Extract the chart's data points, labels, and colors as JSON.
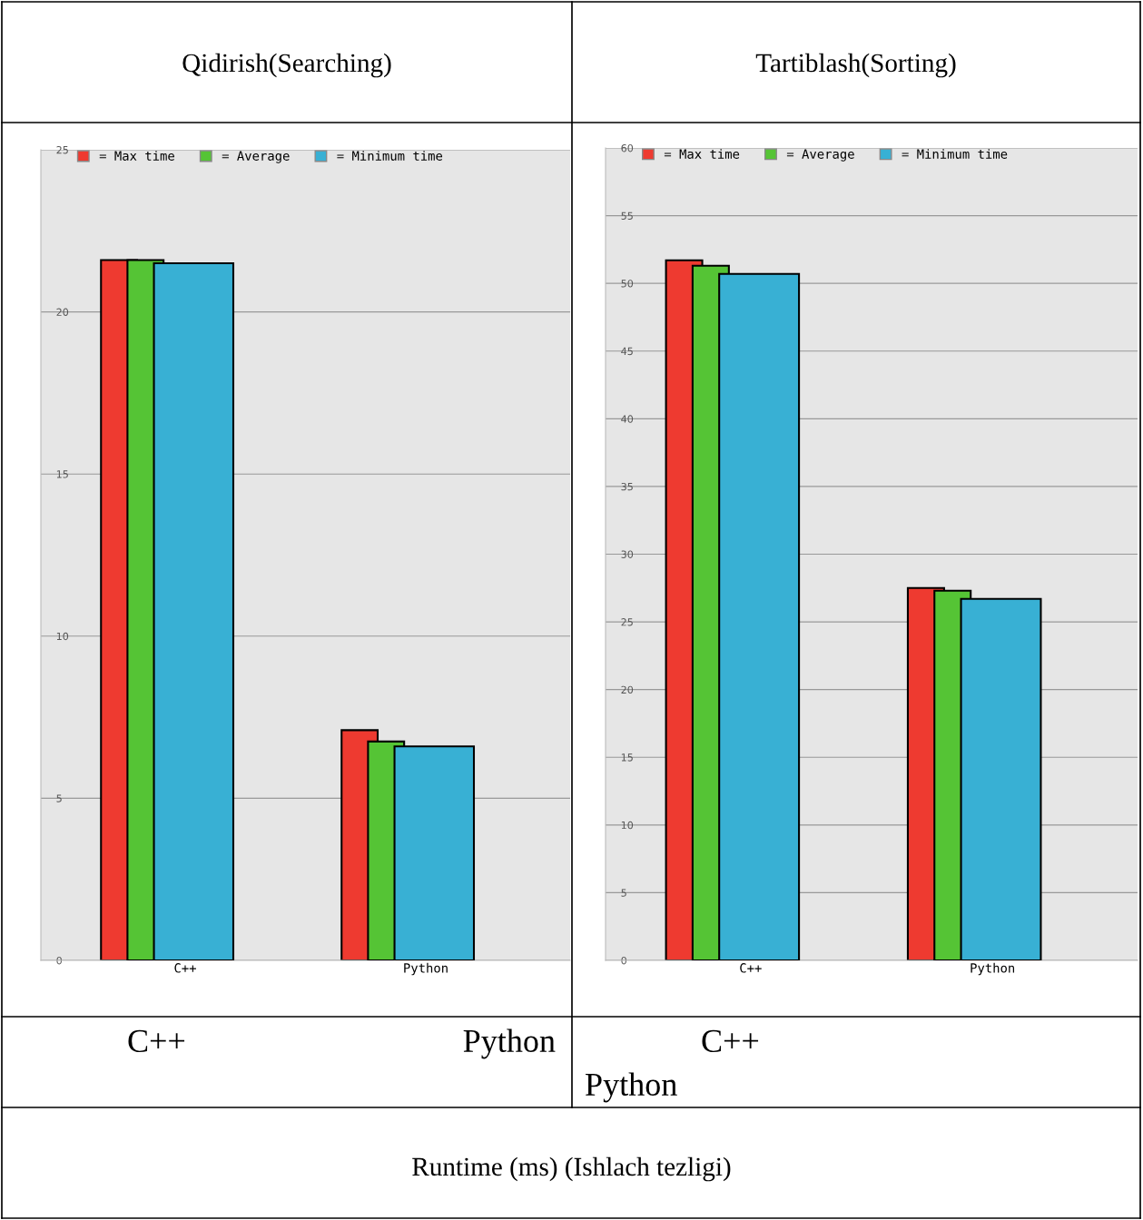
{
  "chart_data": [
    {
      "type": "bar",
      "title": "Qidirish(Searching)",
      "categories": [
        "C++",
        "Python"
      ],
      "series": [
        {
          "name": "= Max time",
          "color": "#ee3a30",
          "values": [
            21.6,
            7.1
          ]
        },
        {
          "name": "= Average",
          "color": "#55c435",
          "values": [
            21.6,
            6.75
          ]
        },
        {
          "name": "= Minimum time",
          "color": "#38b0d4",
          "values": [
            21.5,
            6.6
          ]
        }
      ],
      "ylim": [
        0,
        25
      ],
      "yticks": [
        0,
        5,
        10,
        15,
        20,
        25
      ],
      "grid": "y",
      "legend": "top left",
      "annotations": [
        "C++",
        "Python",
        "Runtime (ms) (Ishlach tezligi)"
      ]
    },
    {
      "type": "bar",
      "title": "Tartiblash(Sorting)",
      "categories": [
        "C++",
        "Python"
      ],
      "series": [
        {
          "name": "= Max time",
          "color": "#ee3a30",
          "values": [
            51.7,
            27.5
          ]
        },
        {
          "name": "= Average",
          "color": "#55c435",
          "values": [
            51.3,
            27.3
          ]
        },
        {
          "name": "= Minimum time",
          "color": "#38b0d4",
          "values": [
            50.7,
            26.7
          ]
        }
      ],
      "ylim": [
        0,
        60
      ],
      "yticks": [
        0,
        5,
        10,
        15,
        20,
        25,
        30,
        35,
        40,
        45,
        50,
        55,
        60
      ],
      "grid": "y",
      "legend": "top left",
      "annotations": [
        "C++",
        "Python"
      ]
    }
  ]
}
